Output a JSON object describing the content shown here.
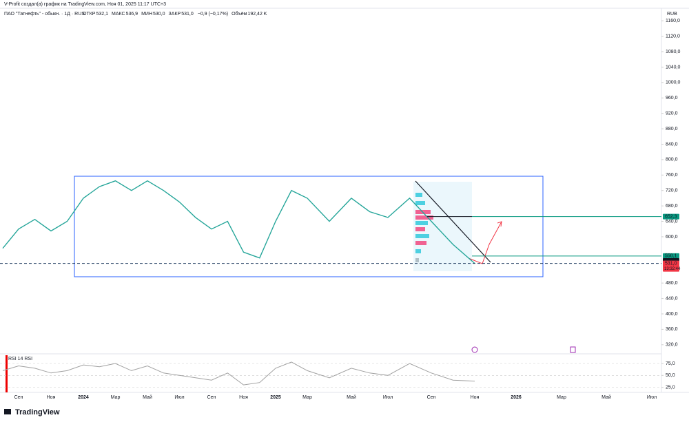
{
  "chart_data": [
    {
      "type": "line",
      "subtitle": "V-Profit создал(а) график на TradingView.com, Ноя 01, 2025 11:17 UTC+3",
      "title": "ПАО \"Татнефть\" - обыкн. · 1Д · RUS",
      "ohlc": [
        {
          "label": "ОТКР",
          "value": "532,1"
        },
        {
          "label": "МАКС",
          "value": "536,9"
        },
        {
          "label": "МИН",
          "value": "530,0"
        },
        {
          "label": "ЗАКР",
          "value": "531,0"
        },
        {
          "label": "",
          "value": "−0,9 (−0,17%)"
        },
        {
          "label": "Объём",
          "value": "192,42 K"
        }
      ],
      "currency": "RUB",
      "brand": "TradingView",
      "color": "#26a69a",
      "categories": [
        null,
        "Сен",
        null,
        "Ноя",
        null,
        "2024",
        null,
        "Мар",
        null,
        "Май",
        null,
        "Июл",
        null,
        "Сен",
        null,
        "Ноя",
        null,
        "2025",
        null,
        "Мар",
        null,
        "Май",
        null,
        "Июл",
        null,
        "Сен",
        null,
        "Ноя",
        null,
        "2026",
        null,
        "Мар",
        null,
        "Май",
        null,
        "Июл"
      ],
      "values": [
        570,
        620,
        645,
        615,
        640,
        700,
        730,
        745,
        720,
        745,
        720,
        690,
        650,
        620,
        640,
        560,
        545,
        640,
        720,
        700,
        640,
        700,
        665,
        650,
        700,
        640,
        580,
        531,
        null,
        null,
        null,
        null,
        null,
        null,
        null,
        null
      ],
      "ylim": [
        300,
        1180
      ],
      "yticks": [
        {
          "value": 320,
          "label": "320,0"
        },
        {
          "value": 360,
          "label": "360,0"
        },
        {
          "value": 400,
          "label": "400,0"
        },
        {
          "value": 440,
          "label": "440,0"
        },
        {
          "value": 480,
          "label": "480,0"
        },
        {
          "value": 600,
          "label": "600,0"
        },
        {
          "value": 640,
          "label": "640,0"
        },
        {
          "value": 680,
          "label": "680,0"
        },
        {
          "value": 720,
          "label": "720,0"
        },
        {
          "value": 760,
          "label": "760,0"
        },
        {
          "value": 800,
          "label": "800,0"
        },
        {
          "value": 840,
          "label": "840,0"
        },
        {
          "value": 880,
          "label": "880,0"
        },
        {
          "value": 920,
          "label": "920,0"
        },
        {
          "value": 960,
          "label": "960,0"
        },
        {
          "value": 1000,
          "label": "1000,0"
        },
        {
          "value": 1040,
          "label": "1040,0"
        },
        {
          "value": 1080,
          "label": "1080,0"
        },
        {
          "value": 1120,
          "label": "1120,0"
        },
        {
          "value": 1160,
          "label": "1160,0"
        }
      ],
      "price_labels": [
        {
          "value": 652.3,
          "label": "652,3",
          "color": "#089981"
        },
        {
          "value": 550.1,
          "label": "550,1",
          "color": "#089981"
        },
        {
          "value": 537.4,
          "label": "537,4",
          "color": "#131722"
        },
        {
          "value": 531.0,
          "label": "531,0",
          "color": "#f23645"
        }
      ],
      "countdown": "13:32:44"
    },
    {
      "type": "line",
      "title": "RSI 14 RSI",
      "color": "#a0a0a0",
      "values": [
        60,
        70,
        65,
        55,
        60,
        72,
        68,
        75,
        60,
        70,
        55,
        50,
        45,
        40,
        55,
        30,
        35,
        65,
        78,
        60,
        45,
        65,
        55,
        50,
        75,
        55,
        40,
        38
      ],
      "ylim": [
        10,
        90
      ],
      "yticks": [
        {
          "value": 75,
          "label": "75,0"
        },
        {
          "value": 50,
          "label": "50,0"
        },
        {
          "value": 25,
          "label": "25,0"
        }
      ]
    }
  ]
}
